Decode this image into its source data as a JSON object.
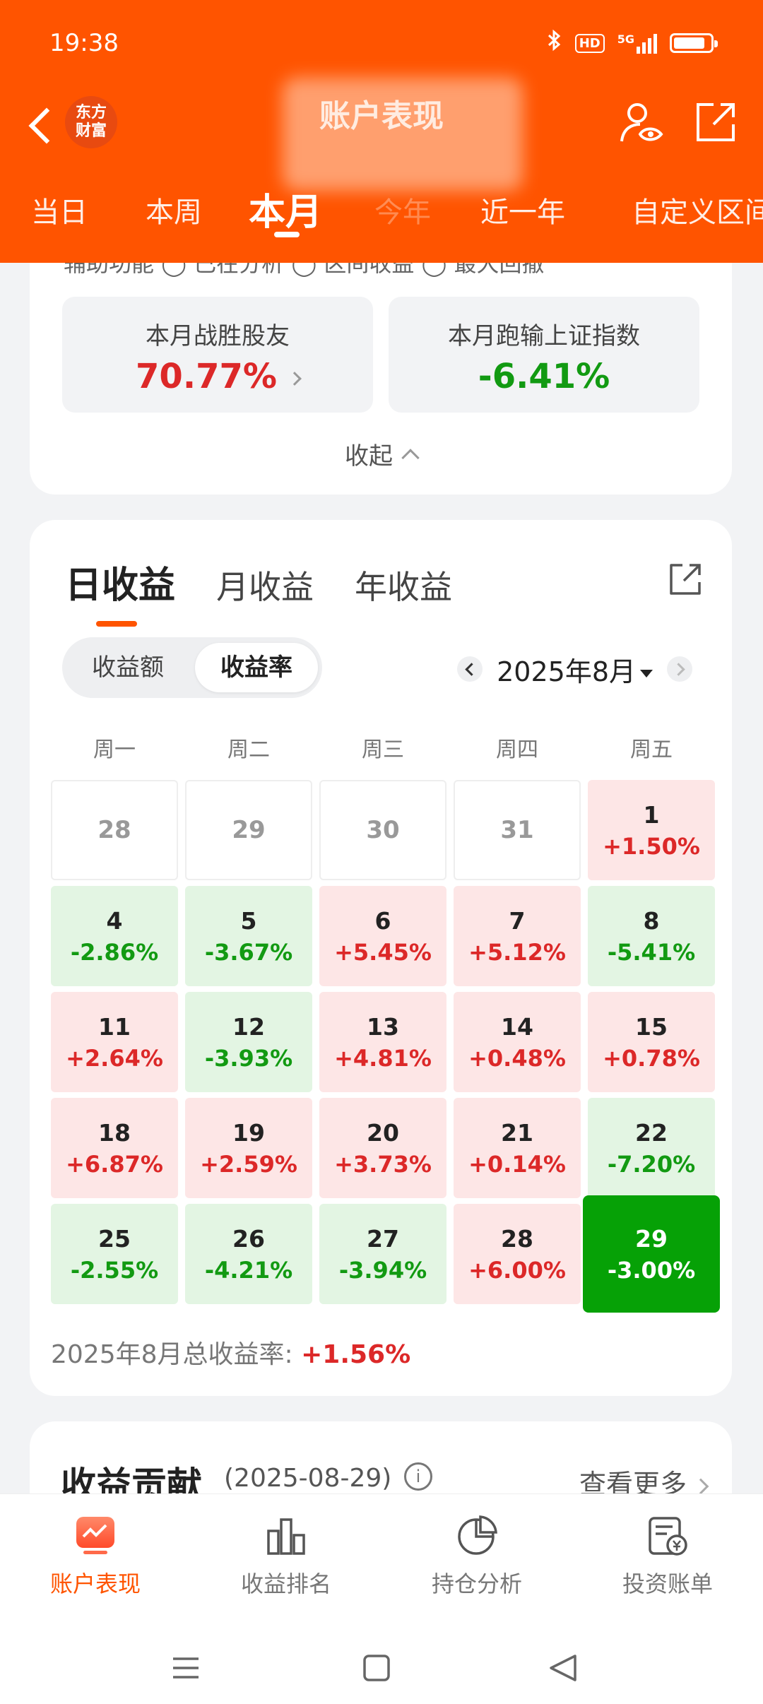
{
  "status_bar": {
    "time": "19:38",
    "hd": "HD",
    "network": "5G"
  },
  "header": {
    "title": "账户表现",
    "logo_line1": "东方",
    "logo_line2": "财富",
    "tabs": [
      "当日",
      "本周",
      "本月",
      "今年",
      "近一年",
      "自定义区间"
    ],
    "active_tab": "本月"
  },
  "summary": {
    "assist_text": "辅助功能   ◯ 已在分析   ◯ 区间收益   ◯ 最大回撤",
    "beat_label": "本月战胜股友",
    "beat_value": "70.77%",
    "lag_label": "本月跑输上证指数",
    "lag_value": "-6.41%",
    "collapse_label": "收起"
  },
  "profit": {
    "tabs": [
      "日收益",
      "月收益",
      "年收益"
    ],
    "toggle": [
      "收益额",
      "收益率"
    ],
    "month": "2025年8月",
    "weekdays": [
      "周一",
      "周二",
      "周三",
      "周四",
      "周五"
    ],
    "weeks": [
      [
        {
          "d": "28",
          "p": "",
          "t": "empty"
        },
        {
          "d": "29",
          "p": "",
          "t": "empty"
        },
        {
          "d": "30",
          "p": "",
          "t": "empty"
        },
        {
          "d": "31",
          "p": "",
          "t": "empty"
        },
        {
          "d": "1",
          "p": "+1.50%",
          "t": "up"
        }
      ],
      [
        {
          "d": "4",
          "p": "-2.86%",
          "t": "down"
        },
        {
          "d": "5",
          "p": "-3.67%",
          "t": "down"
        },
        {
          "d": "6",
          "p": "+5.45%",
          "t": "up"
        },
        {
          "d": "7",
          "p": "+5.12%",
          "t": "up"
        },
        {
          "d": "8",
          "p": "-5.41%",
          "t": "down"
        }
      ],
      [
        {
          "d": "11",
          "p": "+2.64%",
          "t": "up"
        },
        {
          "d": "12",
          "p": "-3.93%",
          "t": "down"
        },
        {
          "d": "13",
          "p": "+4.81%",
          "t": "up"
        },
        {
          "d": "14",
          "p": "+0.48%",
          "t": "up"
        },
        {
          "d": "15",
          "p": "+0.78%",
          "t": "up"
        }
      ],
      [
        {
          "d": "18",
          "p": "+6.87%",
          "t": "up"
        },
        {
          "d": "19",
          "p": "+2.59%",
          "t": "up"
        },
        {
          "d": "20",
          "p": "+3.73%",
          "t": "up"
        },
        {
          "d": "21",
          "p": "+0.14%",
          "t": "up"
        },
        {
          "d": "22",
          "p": "-7.20%",
          "t": "down"
        }
      ],
      [
        {
          "d": "25",
          "p": "-2.55%",
          "t": "down"
        },
        {
          "d": "26",
          "p": "-4.21%",
          "t": "down"
        },
        {
          "d": "27",
          "p": "-3.94%",
          "t": "down"
        },
        {
          "d": "28",
          "p": "+6.00%",
          "t": "up"
        },
        {
          "d": "29",
          "p": "-3.00%",
          "t": "sel"
        }
      ]
    ],
    "total_label": "2025年8月总收益率: ",
    "total_value": "+1.56%"
  },
  "contribution": {
    "title": "收益贡献",
    "date": "(2025-08-29)",
    "more": "查看更多"
  },
  "bottom_nav": [
    "账户表现",
    "收益排名",
    "持仓分析",
    "投资账单"
  ],
  "colors": {
    "brand": "#ff5400",
    "up": "#dc2828",
    "down": "#129a12",
    "selected": "#06a106"
  }
}
